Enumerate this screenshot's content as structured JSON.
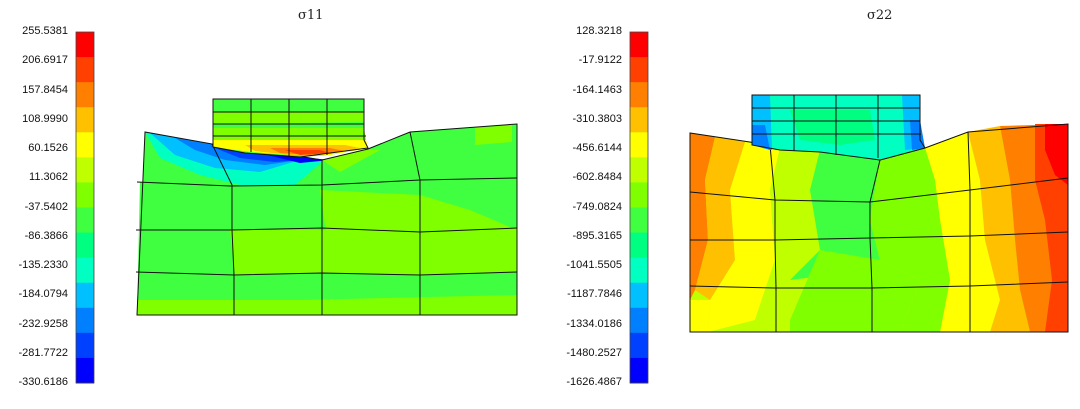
{
  "chart_data": [
    {
      "type": "heatmap",
      "title": "σ11",
      "colors": [
        "#0000ff",
        "#0040ff",
        "#0080ff",
        "#00c0ff",
        "#00ffc0",
        "#00ff80",
        "#40ff40",
        "#80ff00",
        "#c0ff00",
        "#ffff00",
        "#ffc000",
        "#ff8000",
        "#ff4000",
        "#ff0000"
      ],
      "colorbar_ticks": [
        "255.5381",
        "206.6917",
        "157.8454",
        "108.9990",
        "60.1526",
        "11.3062",
        "-37.5402",
        "-86.3866",
        "-135.2330",
        "-184.0794",
        "-232.9258",
        "-281.7722",
        "-330.6186"
      ],
      "range": [
        -330.6186,
        255.5381
      ]
    },
    {
      "type": "heatmap",
      "title": "σ22",
      "colors": [
        "#0000ff",
        "#0040ff",
        "#0080ff",
        "#00c0ff",
        "#00ffc0",
        "#00ff80",
        "#40ff40",
        "#80ff00",
        "#c0ff00",
        "#ffff00",
        "#ffc000",
        "#ff8000",
        "#ff4000",
        "#ff0000"
      ],
      "colorbar_ticks": [
        "128.3218",
        "-17.9122",
        "-164.1463",
        "-310.3803",
        "-456.6144",
        "-602.8484",
        "-749.0824",
        "-895.3165",
        "-1041.5505",
        "-1187.7846",
        "-1334.0186",
        "-1480.2527",
        "-1626.4867"
      ],
      "range": [
        -1626.4867,
        128.3218
      ]
    }
  ]
}
